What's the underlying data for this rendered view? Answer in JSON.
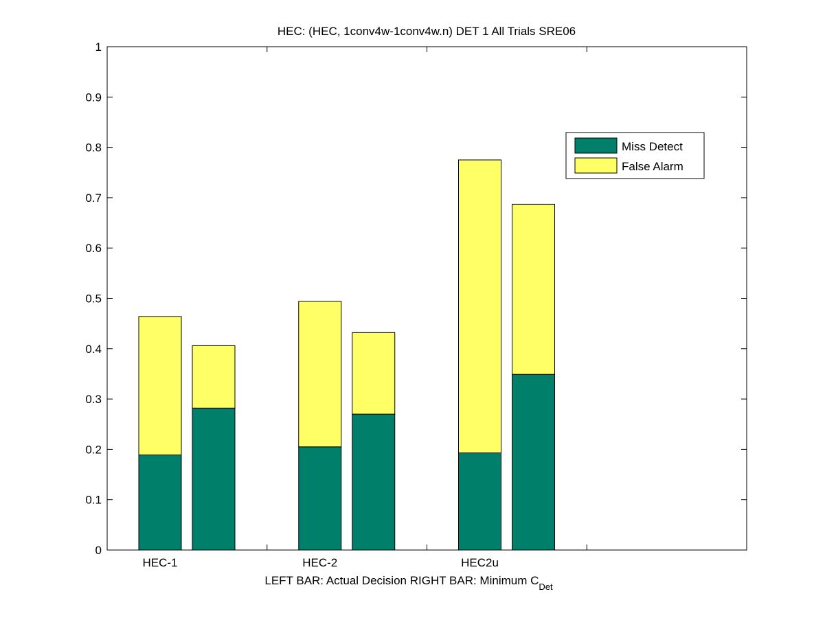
{
  "chart_data": {
    "type": "bar",
    "title": "HEC: (HEC, 1conv4w-1conv4w.n) DET 1 All Trials SRE06",
    "xlabel": {
      "left_part": "LEFT BAR: Actual Decision",
      "right_part": "RIGHT BAR: Minimum C",
      "right_subscript": "Det"
    },
    "ylabel": "",
    "ylim": [
      0,
      1
    ],
    "yticks": [
      "0",
      "0.1",
      "0.2",
      "0.3",
      "0.4",
      "0.5",
      "0.6",
      "0.7",
      "0.8",
      "0.9",
      "1"
    ],
    "stacked": true,
    "grid": false,
    "legend_position": "top-right",
    "categories": [
      "HEC-1",
      "HEC-2",
      "HEC2u"
    ],
    "bar_roles": [
      "Actual Decision",
      "Minimum CDet"
    ],
    "series": [
      {
        "name": "Miss Detect",
        "color": "#00806a",
        "values": [
          [
            0.189,
            0.282
          ],
          [
            0.205,
            0.27
          ],
          [
            0.193,
            0.349
          ]
        ]
      },
      {
        "name": "False Alarm",
        "color": "#ffff66",
        "values": [
          [
            0.275,
            0.124
          ],
          [
            0.289,
            0.162
          ],
          [
            0.582,
            0.338
          ]
        ]
      }
    ]
  }
}
